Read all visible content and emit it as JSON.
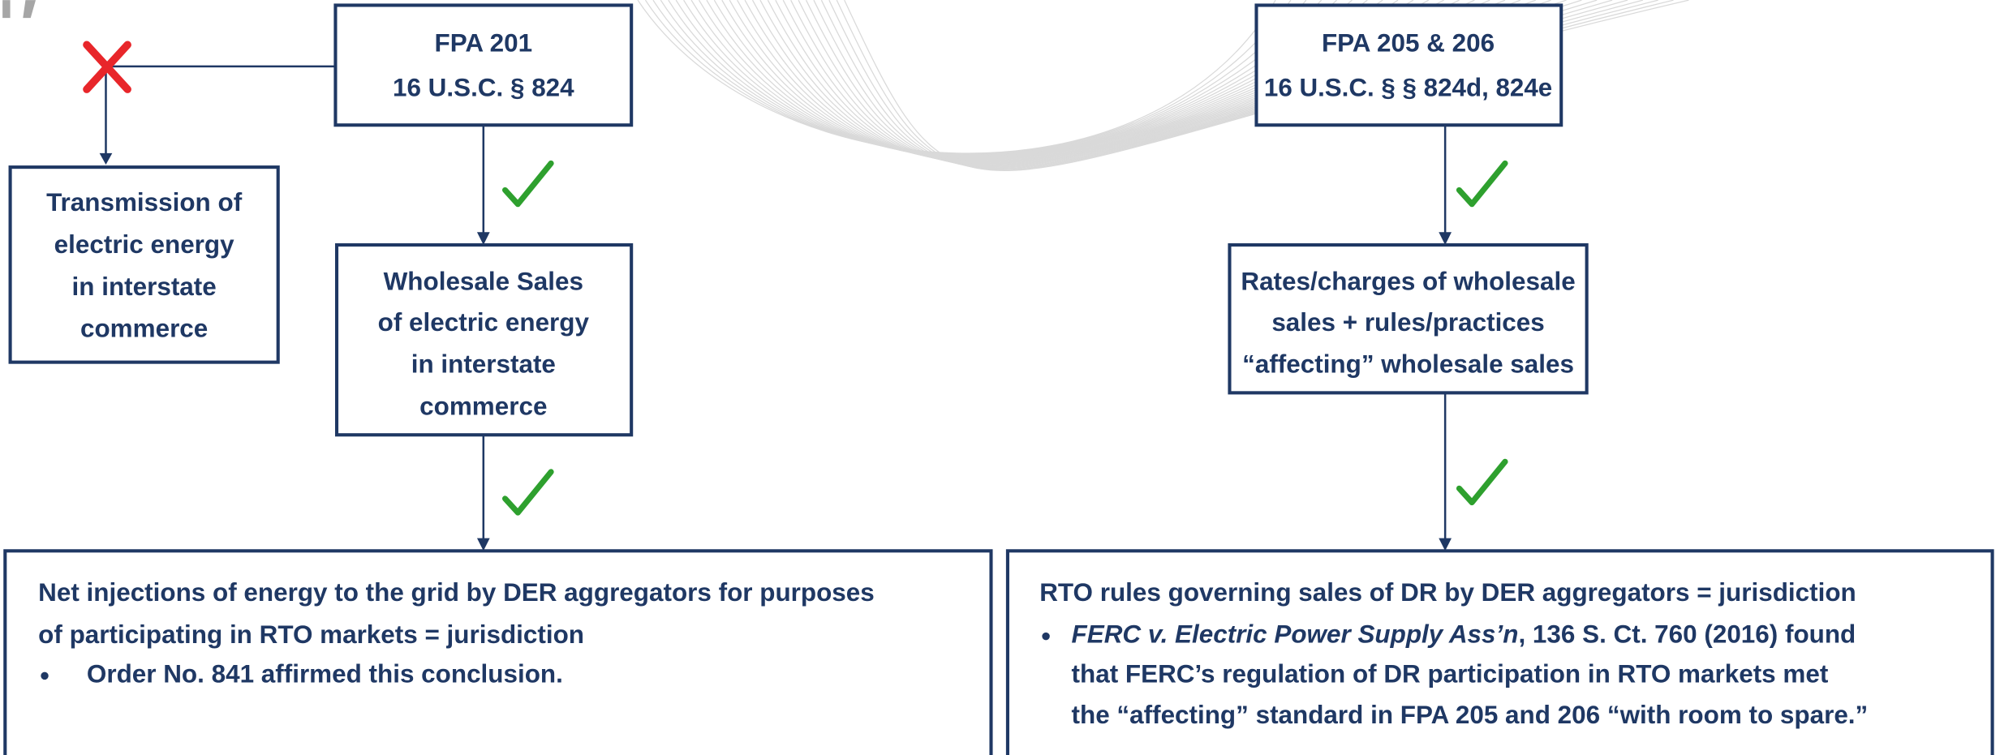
{
  "fpa201": {
    "lines": [
      "FPA 201",
      "16 U.S.C. § 824"
    ]
  },
  "transmission": {
    "lines": [
      "Transmission of",
      "electric energy",
      "in interstate",
      "commerce"
    ]
  },
  "wholesale_sales": {
    "lines": [
      "Wholesale Sales",
      "of electric energy",
      "in interstate",
      "commerce"
    ]
  },
  "net_injections": {
    "lines": [
      "Net injections of energy to the grid by DER aggregators for purposes",
      "of participating in RTO markets = jurisdiction"
    ],
    "bullets": [
      "Order No. 841 affirmed this conclusion."
    ]
  },
  "fpa205_206": {
    "lines": [
      "FPA 205 & 206",
      "16 U.S.C. § § 824d, 824e"
    ]
  },
  "rates": {
    "lines": [
      "Rates/charges of wholesale",
      "sales + rules/practices",
      "“affecting” wholesale sales"
    ]
  },
  "rto_rules": {
    "lines": [
      "RTO rules governing sales of DR by DER aggregators = jurisdiction"
    ],
    "bullet": {
      "case": "FERC v. Electric Power Supply Ass’n",
      "lines": [
        ", 136 S. Ct. 760 (2016) found",
        "that FERC’s regulation of DR participation in RTO markets met",
        "the “affecting” standard in FPA 205 and 206 “with room to spare.”"
      ]
    }
  }
}
